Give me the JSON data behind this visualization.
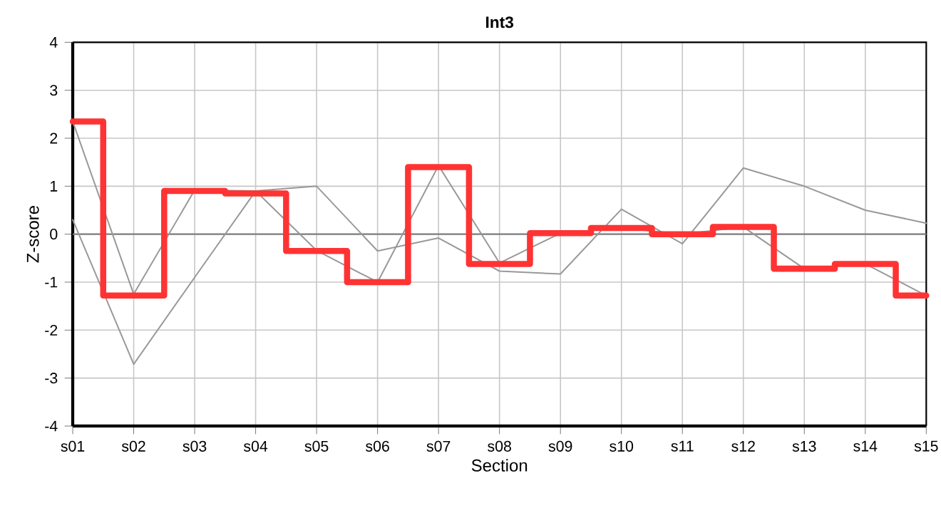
{
  "chart_data": {
    "type": "line",
    "title": "Int3",
    "xlabel": "Section",
    "ylabel": "Z-score",
    "categories": [
      "s01",
      "s02",
      "s03",
      "s04",
      "s05",
      "s06",
      "s07",
      "s08",
      "s09",
      "s10",
      "s11",
      "s12",
      "s13",
      "s14",
      "s15"
    ],
    "series": [
      {
        "color": "#999999",
        "values": [
          2.35,
          -1.25,
          0.92,
          0.9,
          1.0,
          -0.35,
          -0.08,
          -0.77,
          -0.83,
          0.52,
          -0.2,
          1.38,
          1.0,
          0.5,
          0.23
        ]
      },
      {
        "color": "#999999",
        "values": [
          0.3,
          -2.71,
          -0.9,
          0.9,
          -0.34,
          -1.0,
          1.43,
          -0.6,
          0.02,
          0.13,
          0.0,
          0.15,
          -0.72,
          -0.62,
          -1.28
        ]
      },
      {
        "type": "step",
        "color": "#ff3333",
        "values": [
          2.35,
          -1.28,
          0.9,
          0.85,
          -0.35,
          -1.0,
          1.4,
          -0.62,
          0.02,
          0.13,
          0.0,
          0.15,
          -0.72,
          -0.62,
          -1.28
        ]
      }
    ],
    "ylim": [
      -4,
      4
    ],
    "yticks": [
      -4,
      -3,
      -2,
      -1,
      0,
      1,
      2,
      3,
      4
    ],
    "ref_lines": [
      {
        "axis": "y",
        "value": 0,
        "color": "#808080"
      }
    ],
    "grid": true,
    "marker": "none",
    "line_style": "solid"
  }
}
